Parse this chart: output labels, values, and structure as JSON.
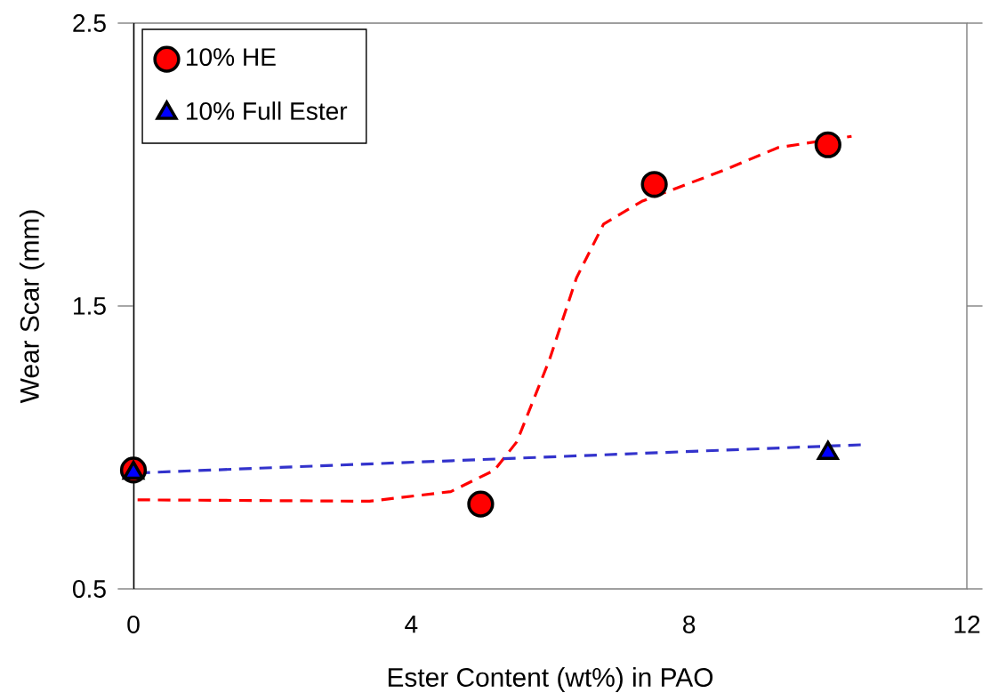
{
  "chart_data": {
    "type": "scatter",
    "xlabel": "Ester Content (wt%) in PAO",
    "ylabel": "Wear Scar (mm)",
    "xlim": [
      0,
      12
    ],
    "xticks": [
      0,
      4,
      8,
      12
    ],
    "ylim": [
      0.5,
      2.5
    ],
    "yticks": [
      0.5,
      1.5,
      2.5
    ],
    "legend": "top left",
    "series": [
      {
        "name": "10% HE",
        "color": "#ff0000",
        "marker": "circle",
        "x": [
          0,
          5,
          7.5,
          10
        ],
        "values": [
          0.92,
          0.8,
          1.93,
          2.07
        ]
      },
      {
        "name": "10% Full Ester",
        "color": "#0000ff",
        "marker": "triangle",
        "x": [
          0,
          10
        ],
        "values": [
          0.91,
          0.98
        ]
      },
      {
        "type": "line",
        "color": "#ff0000",
        "line_style": "dashed",
        "marker": "none",
        "x": [
          0.06,
          3.4,
          4.57,
          5.2,
          5.52,
          5.99,
          6.38,
          6.77,
          7.32,
          8.5,
          9.28,
          10.34
        ],
        "values": [
          0.815,
          0.81,
          0.844,
          0.92,
          1.02,
          1.31,
          1.6,
          1.79,
          1.87,
          1.98,
          2.06,
          2.1
        ]
      },
      {
        "type": "line",
        "color": "#3333cc",
        "line_style": "dashed",
        "marker": "none",
        "x": [
          0.06,
          10.54
        ],
        "values": [
          0.91,
          1.01
        ]
      }
    ]
  }
}
